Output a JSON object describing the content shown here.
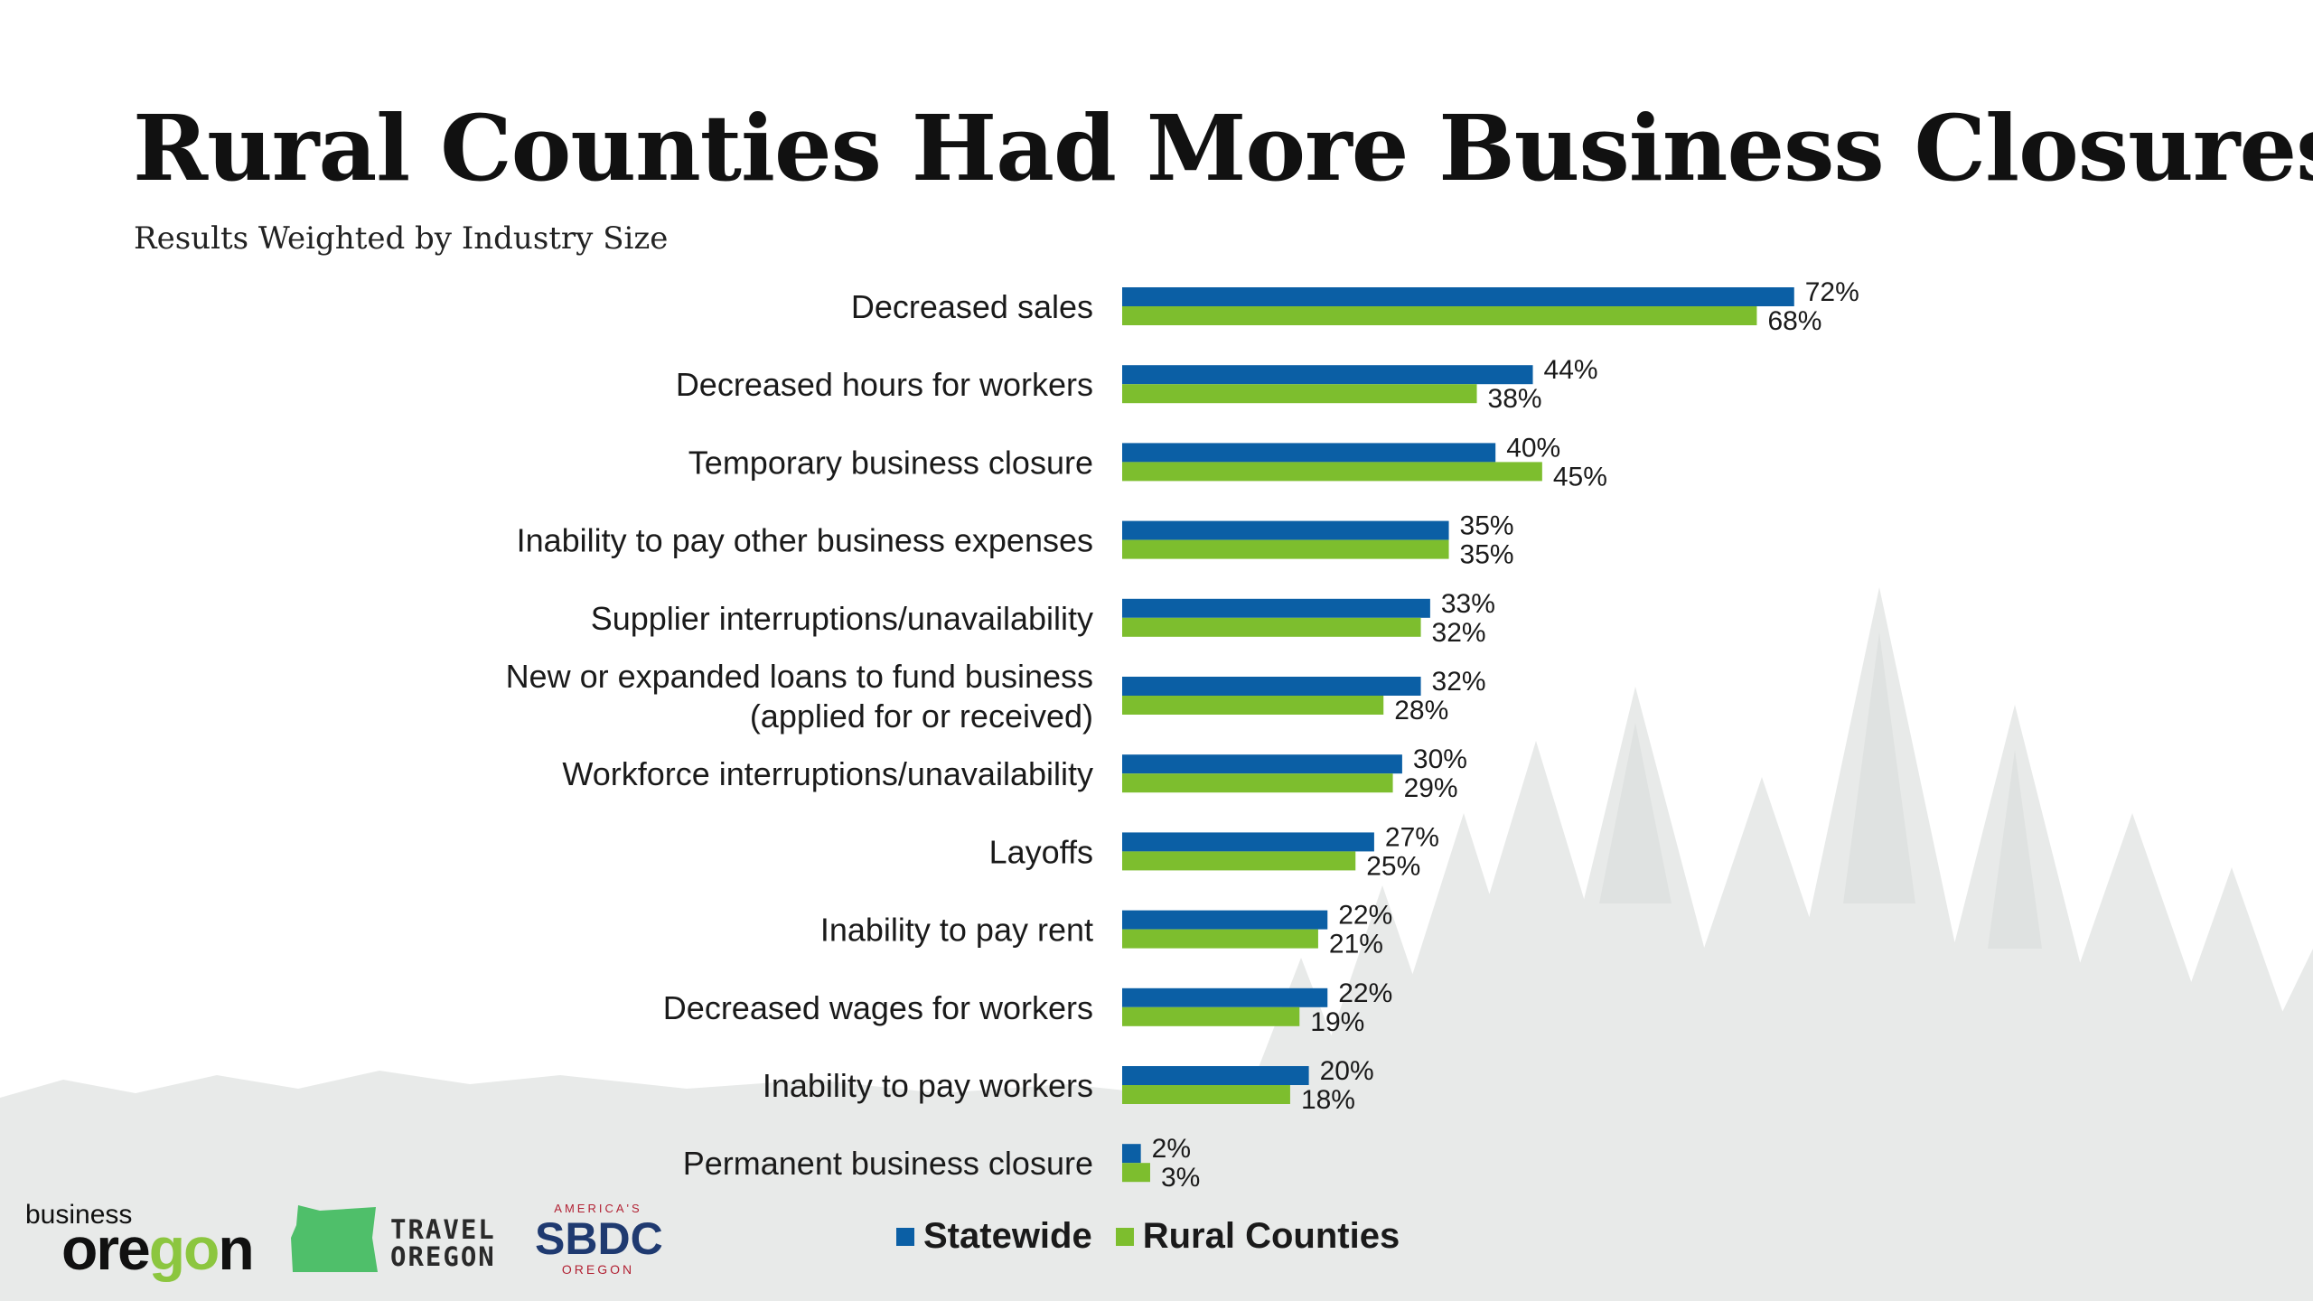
{
  "title": "Rural Counties Had More Business Closures",
  "subtitle": "Results Weighted by Industry Size",
  "colors": {
    "statewide": "#0b5fa5",
    "rural": "#7dbe2e",
    "trees": "#e7e9e8"
  },
  "chart_data": {
    "type": "bar",
    "orientation": "horizontal",
    "categories": [
      [
        "Decreased sales"
      ],
      [
        "Decreased hours for workers"
      ],
      [
        "Temporary business closure"
      ],
      [
        "Inability to pay other business expenses"
      ],
      [
        "Supplier interruptions/unavailability"
      ],
      [
        "New or expanded loans to fund business",
        "(applied for or received)"
      ],
      [
        "Workforce interruptions/unavailability"
      ],
      [
        "Layoffs"
      ],
      [
        "Inability to pay rent"
      ],
      [
        "Decreased wages for workers"
      ],
      [
        "Inability to pay workers"
      ],
      [
        "Permanent business closure"
      ]
    ],
    "series": [
      {
        "name": "Statewide",
        "values": [
          72,
          44,
          40,
          35,
          33,
          32,
          30,
          27,
          22,
          22,
          20,
          2
        ]
      },
      {
        "name": "Rural Counties",
        "values": [
          68,
          38,
          45,
          35,
          32,
          28,
          29,
          25,
          21,
          19,
          18,
          3
        ]
      }
    ],
    "value_suffix": "%",
    "xlim": [
      0,
      100
    ],
    "grid": false,
    "legend_position": "bottom"
  },
  "legend": {
    "statewide": "Statewide",
    "rural": "Rural Counties"
  },
  "logos": {
    "business_oregon_small": "business",
    "business_oregon_big_1": "ore",
    "business_oregon_big_2": "go",
    "business_oregon_big_3": "n",
    "travel_oregon_line1": "TRAVEL",
    "travel_oregon_line2": "OREGON",
    "sbdc_top": "AMERICA'S",
    "sbdc_main": "SBDC",
    "sbdc_bottom": "OREGON"
  }
}
